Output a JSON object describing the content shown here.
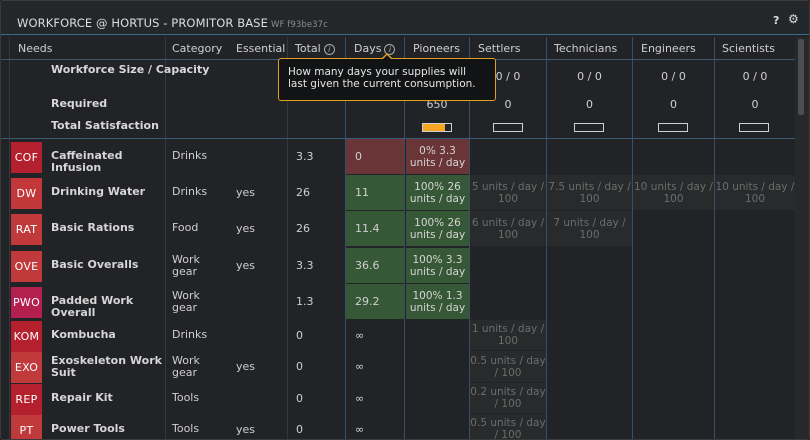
{
  "window": {
    "title": "WORKFORCE @ HORTUS - PROMITOR BASE",
    "id": "WF f93be37c"
  },
  "columns": {
    "needs": "Needs",
    "category": "Category",
    "essential": "Essential",
    "total": "Total",
    "days": "Days",
    "pioneers": "Pioneers",
    "settlers": "Settlers",
    "technicians": "Technicians",
    "engineers": "Engineers",
    "scientists": "Scientists"
  },
  "summary": {
    "size_label": "Workforce Size / Capacity",
    "required_label": "Required",
    "satisfaction_label": "Total Satisfaction",
    "settlers_size": "0 / 0",
    "technicians_size": "0 / 0",
    "engineers_size": "0 / 0",
    "scientists_size": "0 / 0",
    "pioneers_required": "650",
    "settlers_required": "0",
    "technicians_required": "0",
    "engineers_required": "0",
    "scientists_required": "0",
    "pioneers_satisfaction": 0.8,
    "settlers_satisfaction": 0,
    "technicians_satisfaction": 0,
    "engineers_satisfaction": 0,
    "scientists_satisfaction": 0
  },
  "tooltip": {
    "text": "How many days your supplies will last given the current consumption."
  },
  "rows": [
    {
      "ticker": "COF",
      "name": "Caffeinated Infusion",
      "category": "Drinks",
      "essential": "",
      "total": "3.3",
      "days": "0",
      "days_status": "red",
      "pioneers": "0% 3.3 units / day",
      "pioneers_status": "red",
      "settlers": "",
      "technicians": "",
      "engineers": "",
      "scientists": "",
      "ticker_color": "#b5202e"
    },
    {
      "ticker": "DW",
      "name": "Drinking Water",
      "category": "Drinks",
      "essential": "yes",
      "total": "26",
      "days": "11",
      "days_status": "green",
      "pioneers": "100% 26 units / day",
      "pioneers_status": "green",
      "settlers": "5 units / day / 100",
      "technicians": "7.5 units / day / 100",
      "engineers": "10 units / day / 100",
      "scientists": "10 units / day / 100",
      "ticker_color": "#c2373a"
    },
    {
      "ticker": "RAT",
      "name": "Basic Rations",
      "category": "Food",
      "essential": "yes",
      "total": "26",
      "days": "11.4",
      "days_status": "green",
      "pioneers": "100% 26 units / day",
      "pioneers_status": "green",
      "settlers": "6 units / day / 100",
      "technicians": "7 units / day / 100",
      "engineers": "",
      "scientists": "",
      "ticker_color": "#c0393b"
    },
    {
      "ticker": "OVE",
      "name": "Basic Overalls",
      "category": "Work gear",
      "essential": "yes",
      "total": "3.3",
      "days": "36.6",
      "days_status": "green",
      "pioneers": "100% 3.3 units / day",
      "pioneers_status": "green",
      "settlers": "",
      "technicians": "",
      "engineers": "",
      "scientists": "",
      "ticker_color": "#c0393b"
    },
    {
      "ticker": "PWO",
      "name": "Padded Work Overall",
      "category": "Work gear",
      "essential": "",
      "total": "1.3",
      "days": "29.2",
      "days_status": "green",
      "pioneers": "100% 1.3 units / day",
      "pioneers_status": "green",
      "settlers": "",
      "technicians": "",
      "engineers": "",
      "scientists": "",
      "ticker_color": "#b31f4f"
    },
    {
      "ticker": "KOM",
      "name": "Kombucha",
      "category": "Drinks",
      "essential": "",
      "total": "0",
      "days": "∞",
      "days_status": "",
      "pioneers": "",
      "pioneers_status": "",
      "settlers": "1 units / day / 100",
      "technicians": "",
      "engineers": "",
      "scientists": "",
      "ticker_color": "#b5202e"
    },
    {
      "ticker": "EXO",
      "name": "Exoskeleton Work Suit",
      "category": "Work gear",
      "essential": "yes",
      "total": "0",
      "days": "∞",
      "days_status": "",
      "pioneers": "",
      "pioneers_status": "",
      "settlers": "0.5 units / day / 100",
      "technicians": "",
      "engineers": "",
      "scientists": "",
      "ticker_color": "#c0393b"
    },
    {
      "ticker": "REP",
      "name": "Repair Kit",
      "category": "Tools",
      "essential": "",
      "total": "0",
      "days": "∞",
      "days_status": "",
      "pioneers": "",
      "pioneers_status": "",
      "settlers": "0.2 units / day / 100",
      "technicians": "",
      "engineers": "",
      "scientists": "",
      "ticker_color": "#b5202e"
    },
    {
      "ticker": "PT",
      "name": "Power Tools",
      "category": "Tools",
      "essential": "yes",
      "total": "0",
      "days": "∞",
      "days_status": "",
      "pioneers": "",
      "pioneers_status": "",
      "settlers": "0.5 units / day / 100",
      "technicians": "",
      "engineers": "",
      "scientists": "",
      "ticker_color": "#c0393b"
    }
  ]
}
